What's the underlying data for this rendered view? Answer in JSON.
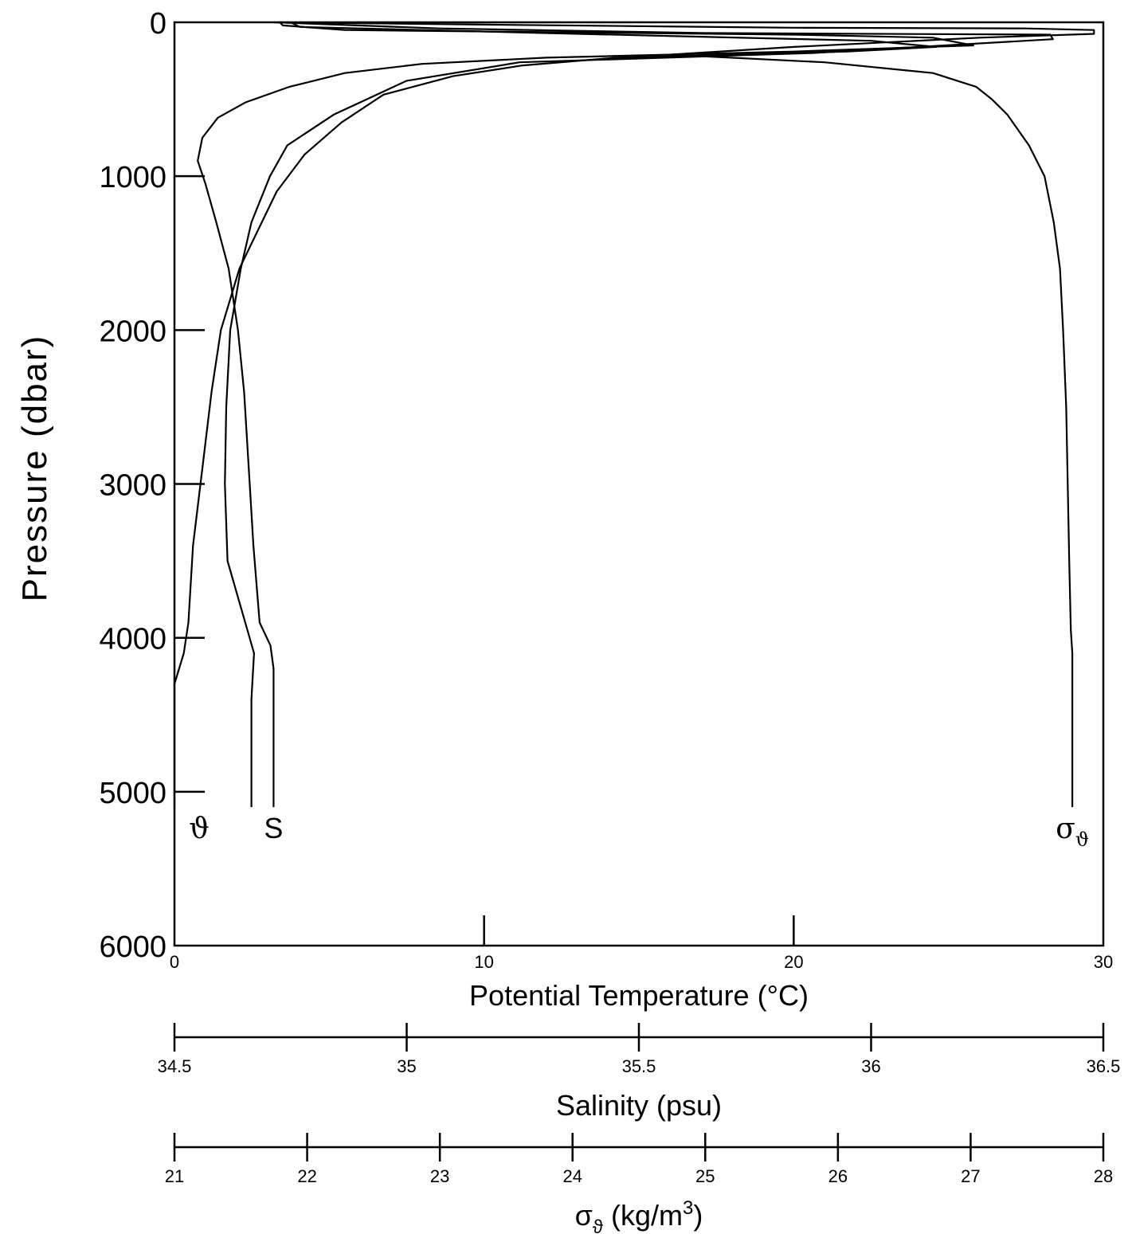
{
  "chart_data": {
    "type": "line",
    "title": "",
    "y_axis": {
      "label": "Pressure (dbar)",
      "range": [
        0,
        6000
      ],
      "inverted": true,
      "ticks": [
        0,
        1000,
        2000,
        3000,
        4000,
        5000,
        6000
      ],
      "tick_labels": [
        "0",
        "1000",
        "2000",
        "3000",
        "4000",
        "5000",
        "6000"
      ]
    },
    "x_axes": [
      {
        "key": "theta",
        "label": "Potential Temperature (°C)",
        "range": [
          0,
          30
        ],
        "ticks": [
          0,
          10,
          20,
          30
        ],
        "tick_labels": [
          "0",
          "10",
          "20",
          "30"
        ]
      },
      {
        "key": "salinity",
        "label": "Salinity (psu)",
        "range": [
          34.5,
          36.5
        ],
        "ticks": [
          34.5,
          35,
          35.5,
          36,
          36.5
        ],
        "tick_labels": [
          "34.5",
          "35",
          "35.5",
          "36",
          "36.5"
        ]
      },
      {
        "key": "sigma",
        "label_symbol": "σ",
        "label_sub": "ϑ",
        "label_rest": " (kg/m",
        "label_sup": "3",
        "label_close": ")",
        "range": [
          21,
          28
        ],
        "ticks": [
          21,
          22,
          23,
          24,
          25,
          26,
          27,
          28
        ],
        "tick_labels": [
          "21",
          "22",
          "23",
          "24",
          "25",
          "26",
          "27",
          "28"
        ]
      }
    ],
    "grid": false,
    "series": [
      {
        "name": "ϑ",
        "axis": "theta",
        "points": [
          [
            3.4,
            0
          ],
          [
            3.5,
            20
          ],
          [
            5.5,
            50
          ],
          [
            20,
            80
          ],
          [
            24.5,
            100
          ],
          [
            25.8,
            150
          ],
          [
            20,
            190
          ],
          [
            12,
            230
          ],
          [
            8,
            270
          ],
          [
            5.5,
            330
          ],
          [
            3.7,
            420
          ],
          [
            2.3,
            520
          ],
          [
            1.4,
            620
          ],
          [
            0.9,
            750
          ],
          [
            0.75,
            900
          ],
          [
            1.0,
            1050
          ],
          [
            1.35,
            1300
          ],
          [
            1.75,
            1600
          ],
          [
            2.05,
            2000
          ],
          [
            2.25,
            2400
          ],
          [
            2.4,
            2900
          ],
          [
            2.55,
            3400
          ],
          [
            2.75,
            3900
          ],
          [
            3.1,
            4050
          ],
          [
            3.2,
            4200
          ],
          [
            3.2,
            5100
          ]
        ]
      },
      {
        "name": "S",
        "axis": "salinity",
        "points": [
          [
            34.75,
            0
          ],
          [
            34.77,
            30
          ],
          [
            35.3,
            70
          ],
          [
            36.0,
            120
          ],
          [
            36.14,
            160
          ],
          [
            35.95,
            190
          ],
          [
            35.45,
            230
          ],
          [
            35.25,
            280
          ],
          [
            35.1,
            350
          ],
          [
            34.95,
            470
          ],
          [
            34.86,
            650
          ],
          [
            34.78,
            860
          ],
          [
            34.72,
            1100
          ],
          [
            34.68,
            1350
          ],
          [
            34.64,
            1600
          ],
          [
            34.6,
            2000
          ],
          [
            34.58,
            2400
          ],
          [
            34.56,
            2900
          ],
          [
            34.54,
            3400
          ],
          [
            34.53,
            3900
          ],
          [
            34.52,
            4100
          ],
          [
            34.5,
            4300
          ],
          [
            34.5,
            5100
          ]
        ]
      },
      {
        "name": "σϑ",
        "axis": "sigma",
        "points": [
          [
            21.75,
            0
          ],
          [
            23.0,
            40
          ],
          [
            25.0,
            70
          ],
          [
            27.6,
            80
          ],
          [
            27.62,
            110
          ],
          [
            25.8,
            200
          ],
          [
            23.6,
            260
          ],
          [
            22.75,
            380
          ],
          [
            22.2,
            600
          ],
          [
            21.85,
            800
          ],
          [
            21.72,
            1000
          ],
          [
            21.58,
            1300
          ],
          [
            21.5,
            1600
          ],
          [
            21.42,
            2000
          ],
          [
            21.39,
            2500
          ],
          [
            21.38,
            3000
          ],
          [
            21.4,
            3500
          ],
          [
            21.55,
            3950
          ],
          [
            21.6,
            4100
          ],
          [
            21.58,
            4400
          ],
          [
            21.58,
            5100
          ]
        ]
      },
      {
        "name": "σϑ",
        "axis": "theta",
        "points": [
          [
            3.4,
            0
          ],
          [
            10,
            15
          ],
          [
            20,
            35
          ],
          [
            27.5,
            40
          ],
          [
            29.7,
            50
          ],
          [
            29.7,
            75
          ],
          [
            26,
            100
          ],
          [
            20,
            160
          ],
          [
            16,
            210
          ],
          [
            21,
            260
          ],
          [
            24.5,
            330
          ],
          [
            25.9,
            420
          ],
          [
            26.4,
            500
          ],
          [
            26.9,
            600
          ],
          [
            27.6,
            800
          ],
          [
            28.1,
            1000
          ],
          [
            28.4,
            1300
          ],
          [
            28.6,
            1600
          ],
          [
            28.7,
            2000
          ],
          [
            28.8,
            2500
          ],
          [
            28.85,
            3000
          ],
          [
            28.9,
            3500
          ],
          [
            28.95,
            3950
          ],
          [
            29.0,
            4100
          ],
          [
            29.0,
            5100
          ]
        ]
      }
    ],
    "curve_labels": [
      {
        "text": "ϑ",
        "axis_value": 0.8
      },
      {
        "text": "S",
        "axis_value": 3.2
      },
      {
        "text_main": "σ",
        "text_sub": "ϑ",
        "axis_value": 29.0
      }
    ]
  }
}
